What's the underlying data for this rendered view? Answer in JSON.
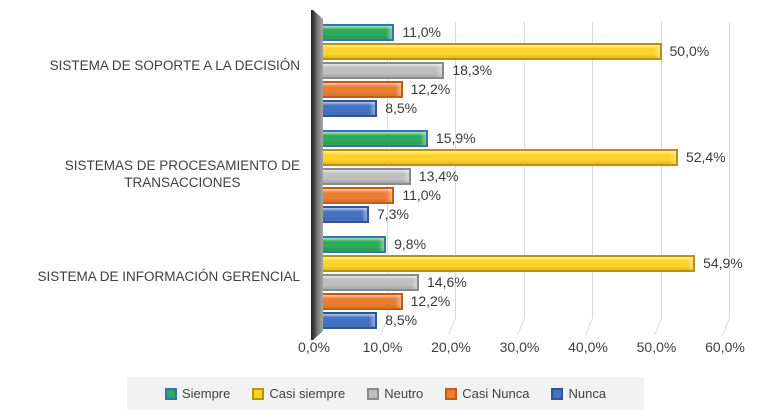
{
  "chart_data": {
    "type": "bar",
    "orientation": "horizontal",
    "title": "",
    "xlabel": "",
    "ylabel": "",
    "grid": true,
    "legend_position": "bottom",
    "categories": [
      "SISTEMA DE SOPORTE A LA DECISIÓN",
      "SISTEMAS DE PROCESAMIENTO DE\nTRANSACCIONES",
      "SISTEMA DE INFORMACIÓN GERENCIAL"
    ],
    "series": [
      {
        "name": "Siempre",
        "color": "#2cab59",
        "border_color": "#2e75b6",
        "values": [
          11.0,
          15.9,
          9.8
        ],
        "labels": [
          "11,0%",
          "15,9%",
          "9,8%"
        ]
      },
      {
        "name": "Casi siempre",
        "color": "#ffd32a",
        "border_color": "#bf9000",
        "values": [
          50.0,
          52.4,
          54.9
        ],
        "labels": [
          "50,0%",
          "52,4%",
          "54,9%"
        ]
      },
      {
        "name": "Neutro",
        "color": "#bfbfbf",
        "border_color": "#8a8a8a",
        "values": [
          18.3,
          13.4,
          14.6
        ],
        "labels": [
          "18,3%",
          "13,4%",
          "14,6%"
        ]
      },
      {
        "name": "Casi Nunca",
        "color": "#ed7d31",
        "border_color": "#c55a11",
        "values": [
          12.2,
          11.0,
          12.2
        ],
        "labels": [
          "12,2%",
          "11,0%",
          "12,2%"
        ]
      },
      {
        "name": "Nunca",
        "color": "#4472c4",
        "border_color": "#2f5597",
        "values": [
          8.5,
          7.3,
          8.5
        ],
        "labels": [
          "8,5%",
          "7,3%",
          "8,5%"
        ]
      }
    ],
    "x_axis": {
      "min": 0,
      "max": 60,
      "tick_values": [
        0,
        10,
        20,
        30,
        40,
        50,
        60
      ],
      "tick_labels": [
        "0,0%",
        "10,0%",
        "20,0%",
        "30,0%",
        "40,0%",
        "50,0%",
        "60,0%"
      ]
    },
    "colors": {
      "gridline": "#d9d9d9",
      "wall": "#3d3d3d",
      "legend_background": "#f2f2f2",
      "text": "#404040"
    }
  }
}
